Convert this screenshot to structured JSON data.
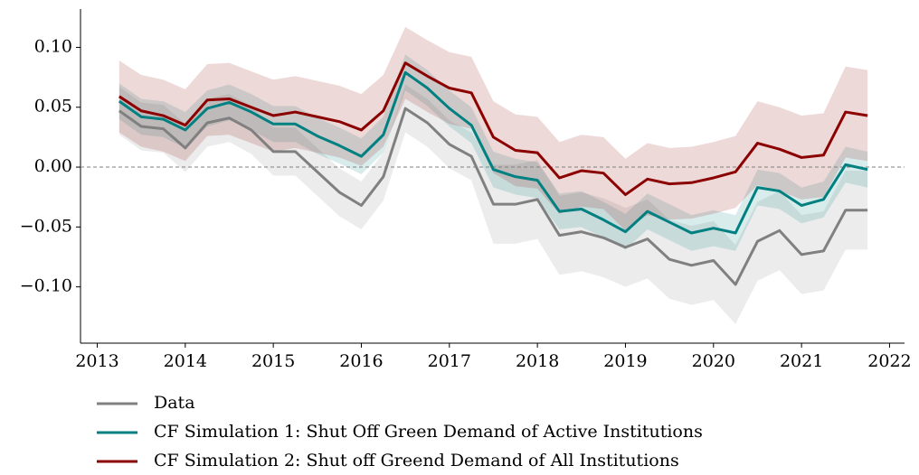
{
  "chart_data": {
    "type": "line",
    "x": [
      2013.25,
      2013.5,
      2013.75,
      2014,
      2014.25,
      2014.5,
      2014.75,
      2015,
      2015.25,
      2015.5,
      2015.75,
      2016,
      2016.25,
      2016.5,
      2016.75,
      2017,
      2017.25,
      2017.5,
      2017.75,
      2018,
      2018.25,
      2018.5,
      2018.75,
      2019,
      2019.25,
      2019.5,
      2019.75,
      2020,
      2020.25,
      2020.5,
      2020.75,
      2021,
      2021.25,
      2021.5,
      2021.75
    ],
    "series": [
      {
        "name": "Data",
        "color": "#808080",
        "values": [
          0.047,
          0.034,
          0.032,
          0.016,
          0.037,
          0.041,
          0.031,
          0.013,
          0.013,
          -0.004,
          -0.021,
          -0.032,
          -0.008,
          0.049,
          0.037,
          0.019,
          0.009,
          -0.031,
          -0.031,
          -0.027,
          -0.057,
          -0.054,
          -0.059,
          -0.067,
          -0.06,
          -0.077,
          -0.082,
          -0.078,
          -0.098,
          -0.062,
          -0.053,
          -0.073,
          -0.07,
          -0.036,
          -0.036
        ],
        "lower": [
          0.027,
          0.014,
          0.012,
          -0.004,
          0.017,
          0.021,
          0.011,
          -0.007,
          -0.007,
          -0.024,
          -0.041,
          -0.052,
          -0.028,
          0.029,
          0.017,
          -0.001,
          -0.011,
          -0.064,
          -0.064,
          -0.06,
          -0.09,
          -0.087,
          -0.092,
          -0.1,
          -0.093,
          -0.11,
          -0.115,
          -0.111,
          -0.131,
          -0.095,
          -0.086,
          -0.106,
          -0.103,
          -0.069,
          -0.069
        ],
        "upper": [
          0.067,
          0.054,
          0.052,
          0.036,
          0.057,
          0.061,
          0.051,
          0.033,
          0.033,
          0.016,
          -0.001,
          -0.012,
          0.012,
          0.069,
          0.057,
          0.039,
          0.029,
          0.002,
          0.002,
          0.006,
          -0.024,
          -0.021,
          -0.026,
          -0.034,
          -0.027,
          -0.044,
          -0.049,
          -0.045,
          -0.065,
          -0.029,
          -0.02,
          -0.04,
          -0.037,
          -0.003,
          -0.003
        ]
      },
      {
        "name": "CF Simulation 1: Shut Off Green Demand of Active Institutions",
        "color": "#008080",
        "values": [
          0.055,
          0.042,
          0.04,
          0.031,
          0.049,
          0.054,
          0.046,
          0.036,
          0.036,
          0.026,
          0.018,
          0.009,
          0.027,
          0.079,
          0.066,
          0.049,
          0.035,
          -0.002,
          -0.008,
          -0.011,
          -0.037,
          -0.035,
          -0.044,
          -0.054,
          -0.037,
          -0.046,
          -0.055,
          -0.051,
          -0.055,
          -0.017,
          -0.02,
          -0.032,
          -0.027,
          0.002,
          -0.002
        ],
        "lower": [
          0.04,
          0.027,
          0.025,
          0.016,
          0.034,
          0.039,
          0.031,
          0.021,
          0.021,
          0.011,
          0.003,
          -0.006,
          0.012,
          0.064,
          0.051,
          0.034,
          0.02,
          -0.017,
          -0.023,
          -0.026,
          -0.052,
          -0.05,
          -0.059,
          -0.069,
          -0.052,
          -0.061,
          -0.07,
          -0.066,
          -0.07,
          -0.032,
          -0.035,
          -0.047,
          -0.042,
          -0.013,
          -0.017
        ],
        "upper": [
          0.07,
          0.057,
          0.055,
          0.046,
          0.064,
          0.069,
          0.061,
          0.051,
          0.051,
          0.041,
          0.033,
          0.024,
          0.042,
          0.094,
          0.081,
          0.064,
          0.05,
          0.013,
          0.007,
          0.004,
          -0.022,
          -0.02,
          -0.029,
          -0.039,
          -0.022,
          -0.031,
          -0.04,
          -0.036,
          -0.04,
          -0.002,
          -0.005,
          -0.017,
          -0.012,
          0.017,
          0.013
        ]
      },
      {
        "name": "CF Simulation 2: Shut off Greend Demand of All Institutions",
        "color": "#8b0000",
        "values": [
          0.059,
          0.047,
          0.043,
          0.035,
          0.056,
          0.057,
          0.05,
          0.043,
          0.046,
          0.042,
          0.038,
          0.031,
          0.047,
          0.087,
          0.076,
          0.066,
          0.062,
          0.025,
          0.014,
          0.012,
          -0.009,
          -0.003,
          -0.005,
          -0.023,
          -0.01,
          -0.014,
          -0.013,
          -0.009,
          -0.004,
          0.02,
          0.015,
          0.008,
          0.01,
          0.046,
          0.043
        ],
        "lower": [
          0.029,
          0.017,
          0.013,
          0.005,
          0.026,
          0.027,
          0.02,
          0.013,
          0.016,
          0.012,
          0.008,
          0.001,
          0.017,
          0.057,
          0.046,
          0.036,
          0.032,
          -0.005,
          -0.016,
          -0.018,
          -0.039,
          -0.033,
          -0.035,
          -0.053,
          -0.04,
          -0.044,
          -0.043,
          -0.039,
          -0.034,
          -0.015,
          -0.02,
          -0.027,
          -0.025,
          0.008,
          0.005
        ],
        "upper": [
          0.089,
          0.077,
          0.073,
          0.065,
          0.086,
          0.087,
          0.08,
          0.073,
          0.076,
          0.072,
          0.068,
          0.061,
          0.077,
          0.117,
          0.106,
          0.096,
          0.092,
          0.055,
          0.044,
          0.042,
          0.021,
          0.027,
          0.025,
          0.007,
          0.02,
          0.016,
          0.017,
          0.021,
          0.026,
          0.055,
          0.05,
          0.043,
          0.045,
          0.084,
          0.081
        ]
      }
    ],
    "xlim": [
      2012.81,
      2022.17
    ],
    "xticks": [
      2013,
      2014,
      2015,
      2016,
      2017,
      2018,
      2019,
      2020,
      2021,
      2022
    ],
    "ylim": [
      -0.147,
      0.132
    ],
    "yticks": [
      {
        "value": -0.1,
        "label": "−0.10"
      },
      {
        "value": -0.05,
        "label": "−0.05"
      },
      {
        "value": 0,
        "label": "0.00"
      },
      {
        "value": 0.05,
        "label": "0.05"
      },
      {
        "value": 0.1,
        "label": "0.10"
      }
    ],
    "reference_line": 0,
    "grid": false,
    "legend": "below"
  }
}
